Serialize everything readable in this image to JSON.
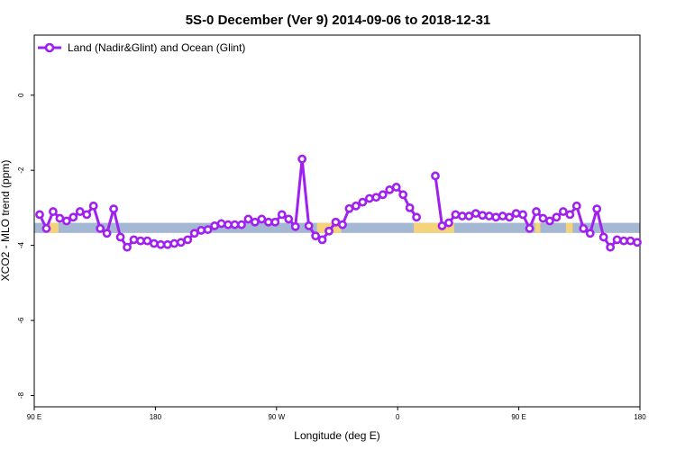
{
  "chart_data": {
    "type": "line",
    "title": "5S-0 December (Ver 9)   2014-09-06 to 2018-12-31",
    "xlabel": "Longitude (deg E)",
    "ylabel": "XCO2 - MLO trend (ppm)",
    "xlim": [
      90,
      540
    ],
    "ylim": [
      -8.3,
      1.6
    ],
    "x_ticks": [
      {
        "value": 90,
        "label": "90 E"
      },
      {
        "value": 180,
        "label": "180"
      },
      {
        "value": 270,
        "label": "90 W"
      },
      {
        "value": 360,
        "label": "0"
      },
      {
        "value": 450,
        "label": "90 E"
      },
      {
        "value": 540,
        "label": "180"
      }
    ],
    "y_ticks": [
      {
        "value": 0,
        "label": "0"
      },
      {
        "value": -2,
        "label": "-2"
      },
      {
        "value": -4,
        "label": "-4"
      },
      {
        "value": -6,
        "label": "-6"
      },
      {
        "value": -8,
        "label": "-8"
      }
    ],
    "grid": false,
    "legend_position": "top-left",
    "colors": {
      "series": "#a020f0",
      "ocean_band": "#a4b8d4",
      "land_band": "#f5d37a"
    },
    "band": {
      "y_range": [
        -3.4,
        -3.67
      ]
    },
    "land_segments": [
      [
        99,
        108
      ],
      [
        300,
        318
      ],
      [
        372,
        402
      ],
      [
        462,
        466
      ],
      [
        485,
        490
      ]
    ],
    "series": [
      {
        "name": "Land (Nadir&Glint) and Ocean (Glint)",
        "x": [
          94,
          99,
          104,
          109,
          114,
          119,
          124,
          129,
          134,
          139,
          144,
          149,
          154,
          159,
          164,
          169,
          174,
          179,
          184,
          189,
          194,
          199,
          204,
          209,
          214,
          219,
          224,
          229,
          234,
          239,
          244,
          249,
          254,
          259,
          264,
          269,
          274,
          279,
          284,
          289,
          294,
          299,
          304,
          309,
          314,
          319,
          324,
          329,
          334,
          339,
          344,
          349,
          354,
          359,
          364,
          369,
          374,
          388,
          393,
          398,
          403,
          408,
          413,
          418,
          423,
          428,
          433,
          438,
          443,
          448,
          453,
          458,
          463,
          468,
          473,
          478,
          483,
          488,
          493,
          498,
          503,
          508,
          513,
          518,
          523,
          528,
          533,
          538
        ],
        "y": [
          -3.18,
          -3.55,
          -3.1,
          -3.28,
          -3.35,
          -3.25,
          -3.1,
          -3.18,
          -2.95,
          -3.55,
          -3.68,
          -3.03,
          -3.78,
          -4.05,
          -3.85,
          -3.88,
          -3.88,
          -3.95,
          -3.98,
          -3.98,
          -3.95,
          -3.92,
          -3.85,
          -3.68,
          -3.6,
          -3.58,
          -3.48,
          -3.42,
          -3.45,
          -3.45,
          -3.45,
          -3.3,
          -3.38,
          -3.3,
          -3.38,
          -3.38,
          -3.18,
          -3.3,
          -3.5,
          -1.7,
          -3.48,
          -3.75,
          -3.85,
          -3.62,
          -3.38,
          -3.45,
          -3.02,
          -2.95,
          -2.85,
          -2.75,
          -2.72,
          -2.65,
          -2.52,
          -2.45,
          -2.65,
          -3.0,
          -3.25,
          -2.15,
          -3.48,
          -3.4,
          -3.18,
          -3.22,
          -3.22,
          -3.15,
          -3.2,
          -3.22,
          -3.25,
          -3.22,
          -3.25,
          -3.15,
          -3.18,
          -3.55,
          -3.1,
          -3.28,
          -3.35,
          -3.25,
          -3.1,
          -3.18,
          -2.95,
          -3.55,
          -3.68,
          -3.03,
          -3.78,
          -4.05,
          -3.85,
          -3.88,
          -3.88,
          -3.92
        ]
      }
    ]
  }
}
